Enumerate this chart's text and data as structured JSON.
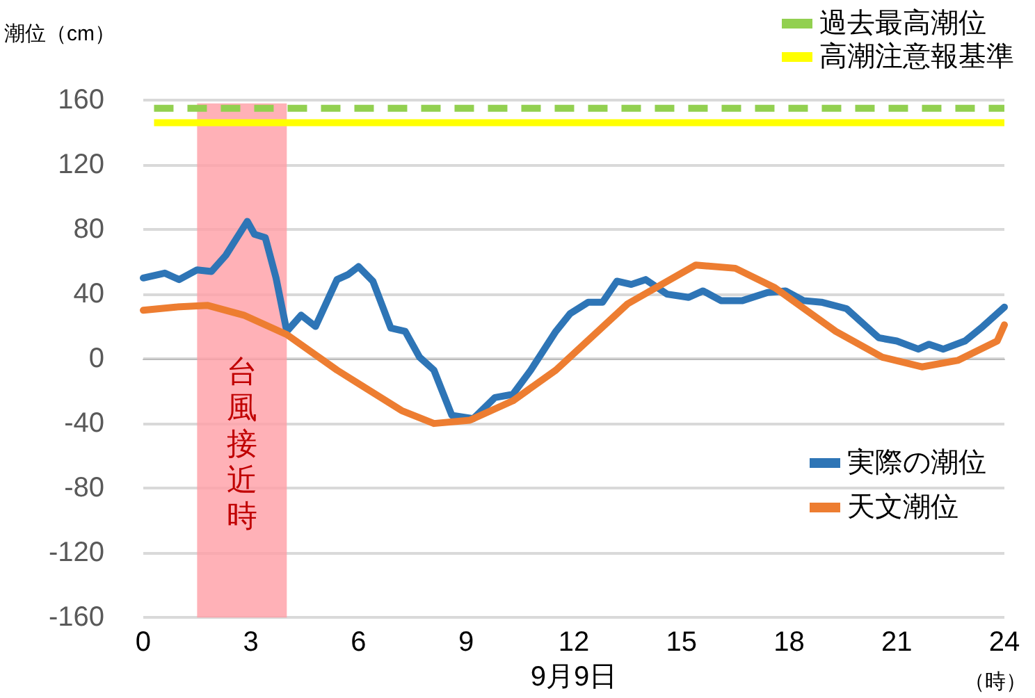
{
  "chart_data": {
    "type": "line",
    "xlabel": "9月9日",
    "ylabel": "潮位（cm）",
    "annotations": [
      "（時）"
    ],
    "xlim": [
      0,
      24
    ],
    "xticks": [
      0,
      3,
      6,
      9,
      12,
      15,
      18,
      21,
      24
    ],
    "ylim": [
      -160,
      160
    ],
    "yticks": [
      -160,
      -120,
      -80,
      -40,
      0,
      40,
      80,
      120,
      160
    ],
    "grid": "y",
    "legend": "right",
    "marker": "none",
    "line_style": "solid",
    "series": [
      {
        "name": "実際の潮位",
        "color": "#2e75b6",
        "x": [
          0,
          0.6,
          1.0,
          1.5,
          1.9,
          2.3,
          2.9,
          3.1,
          3.4,
          3.7,
          4.0,
          4.4,
          4.8,
          5.4,
          5.7,
          6.0,
          6.4,
          6.9,
          7.3,
          7.7,
          8.1,
          8.6,
          9.2,
          9.8,
          10.3,
          10.8,
          11.5,
          11.9,
          12.4,
          12.8,
          13.2,
          13.6,
          14.0,
          14.6,
          15.2,
          15.6,
          16.1,
          16.7,
          17.4,
          17.9,
          18.4,
          18.9,
          19.6,
          20.5,
          21.0,
          21.6,
          21.9,
          22.3,
          22.9,
          23.4,
          24
        ],
        "values": [
          50,
          53,
          49,
          55,
          54,
          64,
          85,
          77,
          75,
          50,
          17,
          27,
          20,
          49,
          52,
          57,
          48,
          19,
          17,
          1,
          -7,
          -35,
          -37,
          -24,
          -22,
          -7,
          17,
          28,
          35,
          35,
          48,
          46,
          49,
          40,
          38,
          42,
          36,
          36,
          41,
          42,
          36,
          35,
          31,
          13,
          11,
          6,
          9,
          6,
          11,
          20,
          32
        ]
      },
      {
        "name": "天文潮位",
        "color": "#ed7d31",
        "x": [
          0,
          0.9,
          1.8,
          2.8,
          4.0,
          5.4,
          7.2,
          8.1,
          9.1,
          10.3,
          11.5,
          13.5,
          15.4,
          16.5,
          17.6,
          19.3,
          20.6,
          21.7,
          22.7,
          23.8,
          24
        ],
        "values": [
          30,
          32,
          33,
          27,
          15,
          -7,
          -32,
          -40,
          -38,
          -26,
          -7,
          34,
          58,
          56,
          44,
          17,
          1,
          -5,
          -1,
          11,
          21
        ]
      }
    ],
    "ref_lines": [
      {
        "axis": "y",
        "value": 155,
        "label": "過去最高潮位",
        "color": "#92d050",
        "line_style": "dashed"
      },
      {
        "axis": "y",
        "value": 146,
        "label": "高潮注意報基準",
        "color": "#ffff00",
        "line_style": "solid"
      }
    ],
    "bands": [
      {
        "axis": "x",
        "from": 1.5,
        "to": 4.0,
        "label": "台風接近時",
        "color": "#ff9da5"
      }
    ]
  }
}
